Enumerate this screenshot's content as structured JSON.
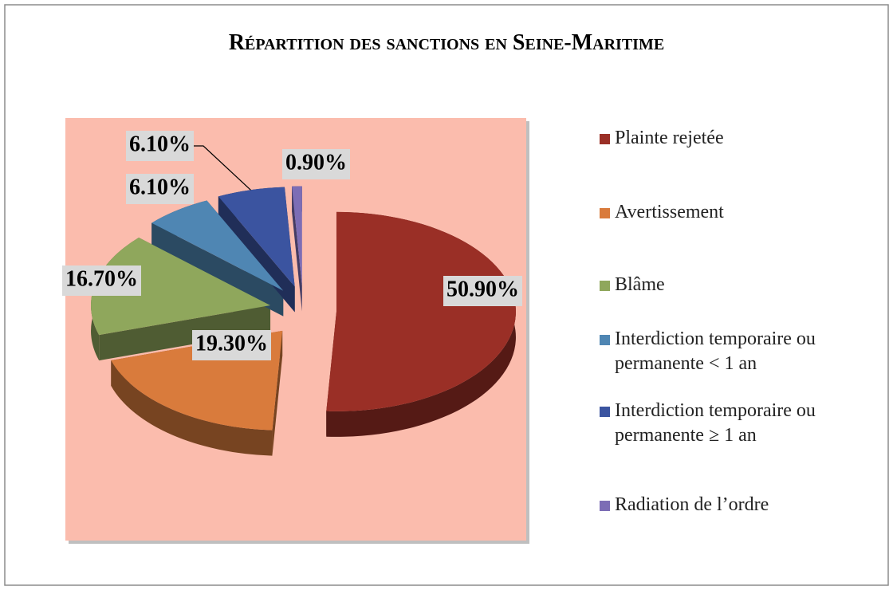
{
  "chart_data": {
    "type": "pie3d",
    "title": "Répartition des sanctions en Seine-Maritime",
    "categories": [
      "Plainte rejetée",
      "Avertissement",
      "Blâme",
      "Interdiction temporaire ou permanente < 1 an",
      "Interdiction temporaire ou permanente ≥ 1 an",
      "Radiation de l’ordre"
    ],
    "values": [
      50.9,
      19.3,
      16.7,
      6.1,
      6.1,
      0.9
    ],
    "value_labels": [
      "50.90%",
      "19.30%",
      "16.70%",
      "6.10%",
      "6.10%",
      "0.90%"
    ],
    "colors": [
      "#9a2f26",
      "#d97b3c",
      "#8fa75c",
      "#4f86b3",
      "#3b54a0",
      "#7c6db5"
    ],
    "legend": "right"
  }
}
